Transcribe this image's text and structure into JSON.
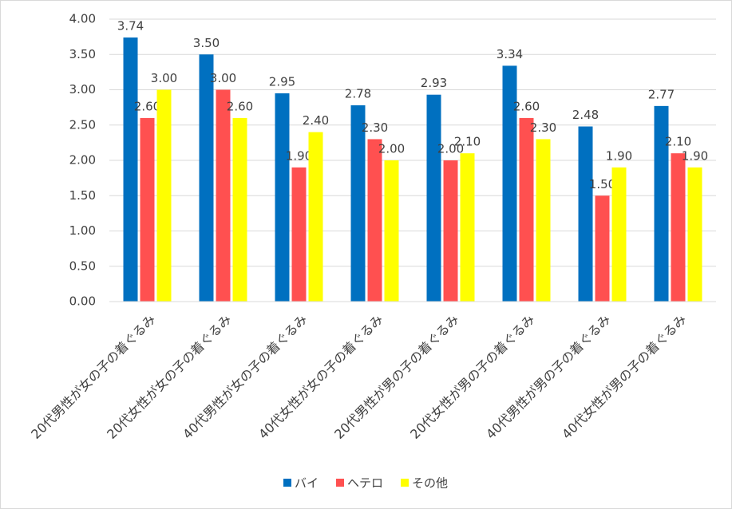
{
  "chart_data": {
    "type": "bar",
    "categories": [
      "20代男性が女の子の着ぐるみ",
      "20代女性が女の子の着ぐるみ",
      "40代男性が女の子の着ぐるみ",
      "40代女性が女の子の着ぐるみ",
      "20代男性が男の子の着ぐるみ",
      "20代女性が男の子の着ぐるみ",
      "40代男性が男の子の着ぐるみ",
      "40代女性が男の子の着ぐるみ"
    ],
    "series": [
      {
        "name": "バイ",
        "color": "#0070c0",
        "values": [
          3.74,
          3.5,
          2.95,
          2.78,
          2.93,
          3.34,
          2.48,
          2.77
        ],
        "value_labels": [
          "3.74",
          "3.50",
          "2.95",
          "2.78",
          "2.93",
          "3.34",
          "2.48",
          "2.77"
        ]
      },
      {
        "name": "ヘテロ",
        "color": "#ff5050",
        "values": [
          2.6,
          3.0,
          1.9,
          2.3,
          2.0,
          2.6,
          1.5,
          2.1
        ],
        "value_labels": [
          "2.60",
          "3.00",
          "1.90",
          "2.30",
          "2.00",
          "2.60",
          "1.50",
          "2.10"
        ]
      },
      {
        "name": "その他",
        "color": "#ffff00",
        "values": [
          3.0,
          2.6,
          2.4,
          2.0,
          2.1,
          2.3,
          1.9,
          1.9
        ],
        "value_labels": [
          "3.00",
          "2.60",
          "2.40",
          "2.00",
          "2.10",
          "2.30",
          "1.90",
          "1.90"
        ]
      }
    ],
    "ylim": [
      0,
      4
    ],
    "yticks": [
      {
        "value": 0,
        "label": "0.00"
      },
      {
        "value": 0.5,
        "label": "0.50"
      },
      {
        "value": 1,
        "label": "1.00"
      },
      {
        "value": 1.5,
        "label": "1.50"
      },
      {
        "value": 2,
        "label": "2.00"
      },
      {
        "value": 2.5,
        "label": "2.50"
      },
      {
        "value": 3,
        "label": "3.00"
      },
      {
        "value": 3.5,
        "label": "3.50"
      },
      {
        "value": 4,
        "label": "4.00"
      }
    ],
    "grid": true,
    "legend": "bottom"
  }
}
